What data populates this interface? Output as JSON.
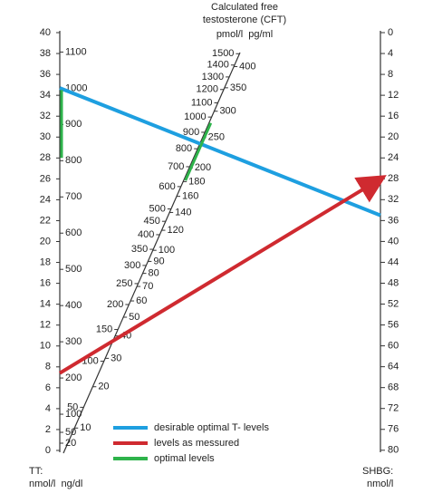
{
  "cft_scale": {
    "title": [
      "Calculated free",
      "testosterone (CFT)"
    ],
    "units": "pmol/l  pg/ml",
    "pmol_ticks": [
      1500,
      1400,
      1300,
      1200,
      1100,
      1000,
      900,
      800,
      700,
      600,
      500,
      450,
      400,
      350,
      300,
      250,
      200,
      150,
      100,
      50
    ],
    "pgml_ticks": [
      400,
      350,
      300,
      250,
      200,
      180,
      160,
      140,
      120,
      100,
      90,
      80,
      70,
      60,
      50,
      40,
      30,
      20,
      10
    ]
  },
  "tt_scale": {
    "label": "TT:",
    "units": "nmol/l  ng/dl",
    "nmol_ticks": [
      0,
      2,
      4,
      6,
      8,
      10,
      12,
      14,
      16,
      18,
      20,
      22,
      24,
      26,
      28,
      30,
      32,
      34,
      36,
      38,
      40
    ],
    "ngdl_ticks": [
      20,
      50,
      100,
      200,
      300,
      400,
      500,
      600,
      700,
      800,
      900,
      1000,
      1100
    ]
  },
  "shbg_scale": {
    "label": "SHBG:",
    "units": "nmol/l",
    "ticks": [
      0,
      4,
      8,
      12,
      16,
      20,
      24,
      28,
      32,
      36,
      40,
      44,
      48,
      52,
      56,
      60,
      64,
      68,
      72,
      76,
      80
    ]
  },
  "lines": [
    {
      "name": "desirable optimal T- levels",
      "color": "#1e9fe0",
      "tt_nmol": 34.7,
      "shbg": 35
    },
    {
      "name": "levels as messured",
      "color": "#cf2a30",
      "tt_nmol": 7.4,
      "shbg": 28
    }
  ],
  "optimal": {
    "name": "optimal levels",
    "color": "#2eb34b",
    "tt_nmol": [
      28,
      34.5
    ],
    "cft_pmol": [
      630,
      960
    ]
  }
}
